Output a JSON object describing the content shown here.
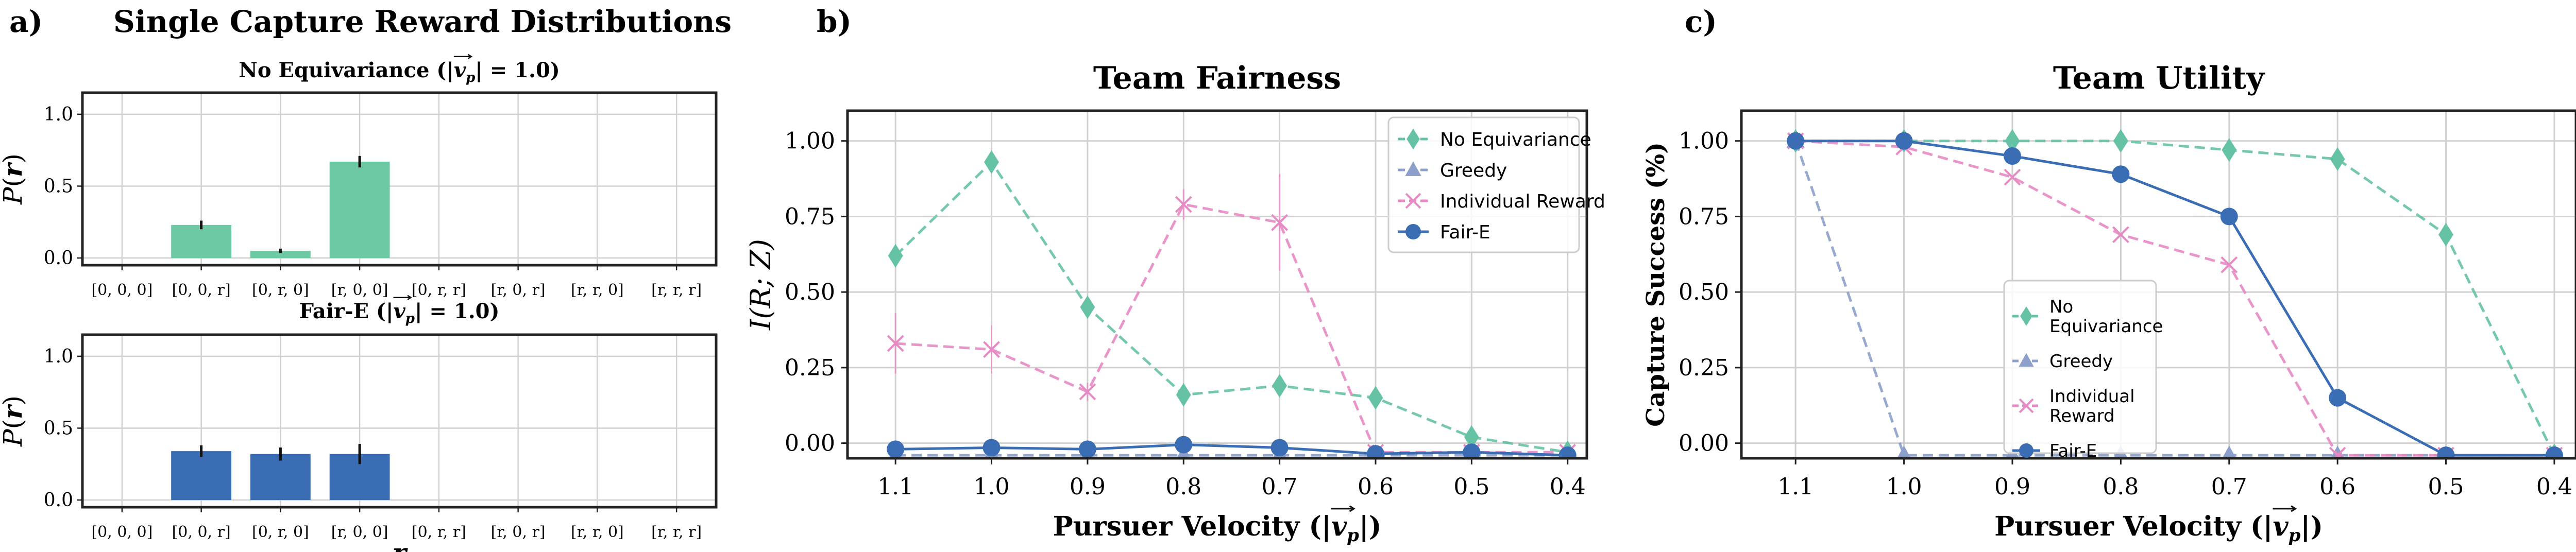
{
  "figure": {
    "panel_a": {
      "letter": "a)",
      "title": "Single Capture Reward Distributions",
      "ylabel": "P(r)",
      "xlabel": "r",
      "categories": [
        "[0, 0, 0]",
        "[0, 0, r]",
        "[0, r, 0]",
        "[r, 0, 0]",
        "[0, r, r]",
        "[r, 0, r]",
        "[r, r, 0]",
        "[r, r, r]"
      ],
      "yticks": [
        "0.0",
        "0.5",
        "1.0"
      ]
    },
    "panel_b": {
      "letter": "b)"
    },
    "panel_c": {
      "letter": "c)"
    },
    "pursuer_xticks": [
      "1.1",
      "1.0",
      "0.9",
      "0.8",
      "0.7",
      "0.6",
      "0.5",
      "0.4"
    ],
    "line_yticks": [
      "0.00",
      "0.25",
      "0.50",
      "0.75",
      "1.00"
    ]
  },
  "chart_data": [
    {
      "type": "bar",
      "title": "No Equivariance (|v_p| = 1.0)",
      "title_parts": [
        "No Equivariance (|",
        "v",
        "p",
        "| = 1.0)"
      ],
      "categories": [
        "[0, 0, 0]",
        "[0, 0, r]",
        "[0, r, 0]",
        "[r, 0, 0]",
        "[0, r, r]",
        "[r, 0, r]",
        "[r, r, 0]",
        "[r, r, r]"
      ],
      "values": [
        0.0,
        0.23,
        0.05,
        0.67,
        0.0,
        0.0,
        0.0,
        0.0
      ],
      "errors": [
        0.0,
        0.03,
        0.015,
        0.04,
        0.0,
        0.0,
        0.0,
        0.0
      ],
      "ylabel": "P(r)",
      "ylim": [
        -0.05,
        1.15
      ],
      "color": "#6cc9a4",
      "grid": true
    },
    {
      "type": "bar",
      "title": "Fair-E (|v_p| = 1.0)",
      "title_parts": [
        "Fair-E (|",
        "v",
        "p",
        "| = 1.0)"
      ],
      "categories": [
        "[0, 0, 0]",
        "[0, 0, r]",
        "[0, r, 0]",
        "[r, 0, 0]",
        "[0, r, r]",
        "[r, 0, r]",
        "[r, r, 0]",
        "[r, r, r]"
      ],
      "values": [
        0.0,
        0.34,
        0.32,
        0.32,
        0.0,
        0.0,
        0.0,
        0.0
      ],
      "errors": [
        0.0,
        0.04,
        0.045,
        0.07,
        0.0,
        0.0,
        0.0,
        0.0
      ],
      "ylabel": "P(r)",
      "xlabel": "r",
      "ylim": [
        -0.05,
        1.15
      ],
      "color": "#3a6db3",
      "grid": true
    },
    {
      "type": "line",
      "title": "Team Fairness",
      "xlabel_parts": [
        "Pursuer Velocity (|",
        "v",
        "p",
        "|)"
      ],
      "ylabel": "I(R; Z)",
      "x": [
        1.1,
        1.0,
        0.9,
        0.8,
        0.7,
        0.6,
        0.5,
        0.4
      ],
      "xlim": [
        1.15,
        0.38
      ],
      "ylim": [
        -0.05,
        1.1
      ],
      "grid": true,
      "legend_position": "top-right",
      "series": [
        {
          "name": "No Equivariance",
          "color": "#66c2a5",
          "marker": "diamond",
          "dashed": true,
          "values": [
            0.62,
            0.93,
            0.45,
            0.16,
            0.19,
            0.15,
            0.02,
            -0.03
          ]
        },
        {
          "name": "Greedy",
          "color": "#8da0cb",
          "marker": "triangle",
          "dashed": true,
          "values": [
            -0.04,
            -0.04,
            -0.04,
            -0.04,
            -0.04,
            -0.04,
            -0.04,
            -0.04
          ]
        },
        {
          "name": "Individual Reward",
          "color": "#e78ac3",
          "marker": "x",
          "dashed": true,
          "values": [
            0.33,
            0.31,
            0.17,
            0.79,
            0.73,
            -0.03,
            -0.03,
            -0.03
          ],
          "errors": [
            0.1,
            0.08,
            0.03,
            0.05,
            0.16,
            0.0,
            0.0,
            0.0
          ]
        },
        {
          "name": "Fair-E",
          "color": "#3a6db3",
          "marker": "circle",
          "dashed": false,
          "values": [
            -0.02,
            -0.015,
            -0.02,
            -0.005,
            -0.015,
            -0.035,
            -0.03,
            -0.04
          ]
        }
      ]
    },
    {
      "type": "line",
      "title": "Team Utility",
      "xlabel_parts": [
        "Pursuer Velocity (|",
        "v",
        "p",
        "|)"
      ],
      "ylabel": "Capture Success (%)",
      "x": [
        1.1,
        1.0,
        0.9,
        0.8,
        0.7,
        0.6,
        0.5,
        0.4
      ],
      "xlim": [
        1.15,
        0.38
      ],
      "ylim": [
        -0.05,
        1.1
      ],
      "grid": true,
      "legend_position": "lower-center",
      "series": [
        {
          "name": "No Equivariance",
          "legend_lines": [
            "No",
            "Equivariance"
          ],
          "color": "#66c2a5",
          "marker": "diamond",
          "dashed": true,
          "values": [
            1.0,
            1.0,
            1.0,
            1.0,
            0.97,
            0.94,
            0.69,
            -0.04
          ]
        },
        {
          "name": "Greedy",
          "legend_lines": [
            "Greedy"
          ],
          "color": "#8da0cb",
          "marker": "triangle",
          "dashed": true,
          "values": [
            1.0,
            -0.04,
            -0.04,
            -0.04,
            -0.04,
            -0.04,
            -0.04,
            -0.04
          ]
        },
        {
          "name": "Individual Reward",
          "legend_lines": [
            "Individual",
            "Reward"
          ],
          "color": "#e78ac3",
          "marker": "x",
          "dashed": true,
          "values": [
            1.0,
            0.98,
            0.88,
            0.69,
            0.59,
            -0.04,
            -0.04,
            -0.04
          ]
        },
        {
          "name": "Fair-E",
          "legend_lines": [
            "Fair-E"
          ],
          "color": "#3a6db3",
          "marker": "circle",
          "dashed": false,
          "values": [
            1.0,
            1.0,
            0.95,
            0.89,
            0.75,
            0.15,
            -0.04,
            -0.04
          ]
        }
      ]
    }
  ]
}
